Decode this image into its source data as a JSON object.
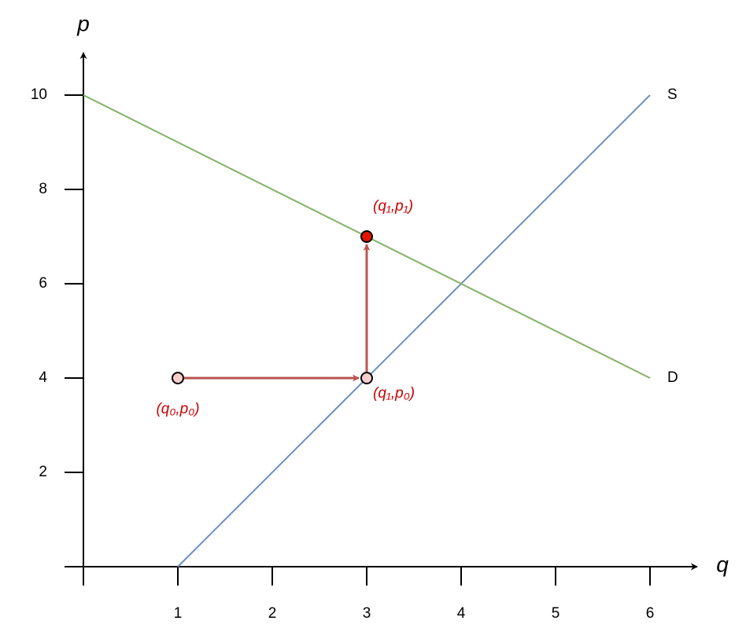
{
  "chart_data": {
    "type": "line",
    "x_label": "q",
    "y_label": "p",
    "xlim": [
      0,
      6.5
    ],
    "ylim": [
      0,
      10.9
    ],
    "xticks": [
      1,
      2,
      3,
      4,
      5,
      6
    ],
    "yticks": [
      2,
      4,
      6,
      8,
      10
    ],
    "series": [
      {
        "name": "S",
        "color": "#6c8ebf",
        "label_color": "#0000cc",
        "x": [
          1,
          6
        ],
        "values": [
          0,
          10
        ]
      },
      {
        "name": "D",
        "color": "#82b366",
        "label_color": "#009900",
        "x": [
          0,
          6
        ],
        "values": [
          10,
          4
        ]
      }
    ],
    "arrows": [
      {
        "color": "#b85450",
        "x": [
          1,
          3
        ],
        "y": [
          4,
          4
        ]
      },
      {
        "color": "#b85450",
        "x": [
          3,
          3
        ],
        "y": [
          4,
          7
        ]
      }
    ],
    "points": [
      {
        "x": 1,
        "y": 4,
        "label": "(q₀,p₀)",
        "color": "#f8cecc"
      },
      {
        "x": 3,
        "y": 4,
        "label": "(q₁,p₀)",
        "color": "#f8cecc"
      },
      {
        "x": 3,
        "y": 7,
        "label": "(q₁,p₁)",
        "color": "#e51400"
      }
    ]
  }
}
